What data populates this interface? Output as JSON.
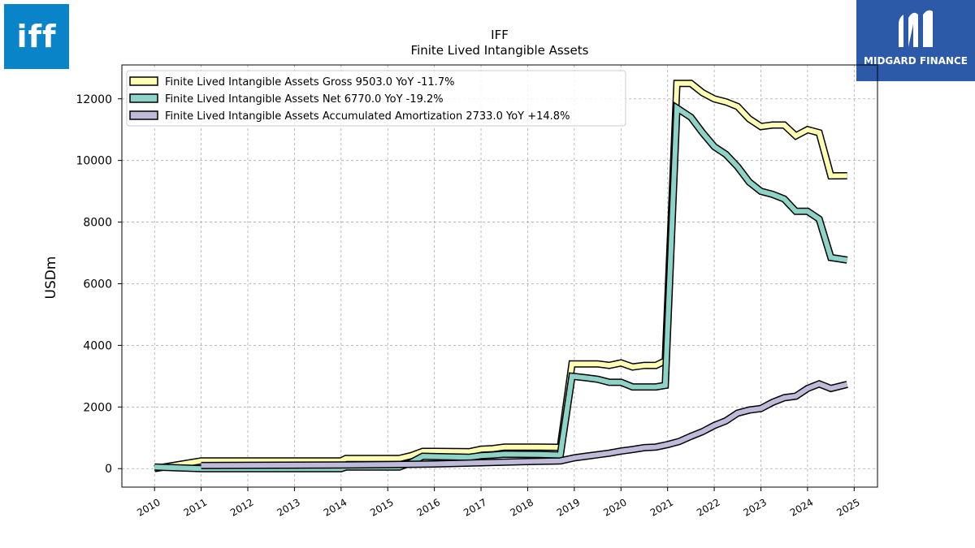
{
  "logos": {
    "left": {
      "text": "iff",
      "color": "#0a84c8"
    },
    "right": {
      "text": "MIDGARD FINANCE",
      "color": "#2c5aa8"
    }
  },
  "chart_data": {
    "type": "line",
    "title": "IFF",
    "subtitle": "Finite Lived Intangible Assets",
    "xlabel": "",
    "ylabel": "USDm",
    "xlim": [
      2009.3,
      2025.5
    ],
    "ylim": [
      -600,
      13100
    ],
    "x_ticks": [
      "2010",
      "2011",
      "2012",
      "2013",
      "2014",
      "2015",
      "2016",
      "2017",
      "2018",
      "2019",
      "2020",
      "2021",
      "2022",
      "2023",
      "2024",
      "2025"
    ],
    "y_ticks": [
      0,
      2000,
      4000,
      6000,
      8000,
      10000,
      12000
    ],
    "grid": true,
    "legend_position": "top-left",
    "series": [
      {
        "name": "Finite Lived Intangible Assets Gross  9503.0 YoY -11.7%",
        "color": "#ffffb3",
        "points": [
          [
            2010.0,
            0
          ],
          [
            2011.0,
            250
          ],
          [
            2014.0,
            250
          ],
          [
            2014.1,
            330
          ],
          [
            2015.25,
            330
          ],
          [
            2015.5,
            420
          ],
          [
            2015.75,
            560
          ],
          [
            2016.0,
            560
          ],
          [
            2016.75,
            550
          ],
          [
            2017.0,
            630
          ],
          [
            2017.25,
            650
          ],
          [
            2017.5,
            700
          ],
          [
            2018.25,
            700
          ],
          [
            2018.7,
            690
          ],
          [
            2018.95,
            3400
          ],
          [
            2019.25,
            3400
          ],
          [
            2019.5,
            3400
          ],
          [
            2019.75,
            3350
          ],
          [
            2020.0,
            3430
          ],
          [
            2020.25,
            3300
          ],
          [
            2020.5,
            3350
          ],
          [
            2020.75,
            3350
          ],
          [
            2020.95,
            3500
          ],
          [
            2021.2,
            12500
          ],
          [
            2021.5,
            12500
          ],
          [
            2021.75,
            12200
          ],
          [
            2022.0,
            12000
          ],
          [
            2022.25,
            11900
          ],
          [
            2022.5,
            11750
          ],
          [
            2022.75,
            11350
          ],
          [
            2023.0,
            11100
          ],
          [
            2023.25,
            11150
          ],
          [
            2023.5,
            11150
          ],
          [
            2023.75,
            10800
          ],
          [
            2024.0,
            11000
          ],
          [
            2024.25,
            10900
          ],
          [
            2024.5,
            9500
          ],
          [
            2024.85,
            9503
          ]
        ]
      },
      {
        "name": "Finite Lived Intangible Assets Net  6770.0 YoY -19.2%",
        "color": "#8dd3c7",
        "points": [
          [
            2010.0,
            50
          ],
          [
            2011.0,
            0
          ],
          [
            2014.0,
            0
          ],
          [
            2014.1,
            50
          ],
          [
            2015.25,
            50
          ],
          [
            2015.5,
            200
          ],
          [
            2015.75,
            400
          ],
          [
            2016.0,
            390
          ],
          [
            2016.75,
            370
          ],
          [
            2017.0,
            420
          ],
          [
            2017.25,
            440
          ],
          [
            2017.5,
            470
          ],
          [
            2018.25,
            460
          ],
          [
            2018.7,
            440
          ],
          [
            2018.95,
            3000
          ],
          [
            2019.25,
            2950
          ],
          [
            2019.5,
            2900
          ],
          [
            2019.75,
            2800
          ],
          [
            2020.0,
            2800
          ],
          [
            2020.25,
            2650
          ],
          [
            2020.5,
            2650
          ],
          [
            2020.75,
            2650
          ],
          [
            2020.95,
            2700
          ],
          [
            2021.2,
            11700
          ],
          [
            2021.5,
            11400
          ],
          [
            2021.75,
            10900
          ],
          [
            2022.0,
            10450
          ],
          [
            2022.25,
            10200
          ],
          [
            2022.5,
            9800
          ],
          [
            2022.75,
            9300
          ],
          [
            2023.0,
            9000
          ],
          [
            2023.25,
            8900
          ],
          [
            2023.5,
            8750
          ],
          [
            2023.75,
            8350
          ],
          [
            2024.0,
            8350
          ],
          [
            2024.25,
            8100
          ],
          [
            2024.5,
            6850
          ],
          [
            2024.85,
            6770
          ]
        ]
      },
      {
        "name": "Finite Lived Intangible Assets Accumulated Amortization  2733.0 YoY +14.8%",
        "color": "#bebada",
        "points": [
          [
            2011.0,
            100
          ],
          [
            2014.0,
            120
          ],
          [
            2015.0,
            130
          ],
          [
            2015.5,
            140
          ],
          [
            2016.0,
            150
          ],
          [
            2016.5,
            170
          ],
          [
            2017.0,
            190
          ],
          [
            2017.5,
            210
          ],
          [
            2018.0,
            230
          ],
          [
            2018.7,
            250
          ],
          [
            2019.0,
            350
          ],
          [
            2019.25,
            400
          ],
          [
            2019.5,
            450
          ],
          [
            2019.75,
            500
          ],
          [
            2020.0,
            570
          ],
          [
            2020.25,
            620
          ],
          [
            2020.5,
            680
          ],
          [
            2020.75,
            700
          ],
          [
            2021.0,
            780
          ],
          [
            2021.25,
            880
          ],
          [
            2021.5,
            1050
          ],
          [
            2021.75,
            1200
          ],
          [
            2022.0,
            1400
          ],
          [
            2022.25,
            1550
          ],
          [
            2022.5,
            1800
          ],
          [
            2022.75,
            1900
          ],
          [
            2023.0,
            1950
          ],
          [
            2023.25,
            2150
          ],
          [
            2023.5,
            2300
          ],
          [
            2023.75,
            2350
          ],
          [
            2024.0,
            2600
          ],
          [
            2024.25,
            2750
          ],
          [
            2024.5,
            2600
          ],
          [
            2024.85,
            2733
          ]
        ]
      }
    ]
  }
}
